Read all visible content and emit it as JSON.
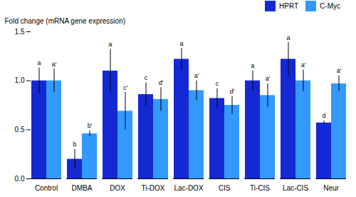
{
  "chart_data": {
    "type": "bar",
    "categories": [
      "Control",
      "DMBA",
      "DOX",
      "Ti-DOX",
      "Lac-DOX",
      "CIS",
      "Ti-CIS",
      "Lac-CIS",
      "Neur"
    ],
    "series": [
      {
        "name": "HPRT",
        "color": "#1428d4",
        "values": [
          1.0,
          0.2,
          1.1,
          0.86,
          1.22,
          0.82,
          1.0,
          1.22,
          0.57
        ],
        "errors": [
          0.13,
          0.1,
          0.22,
          0.12,
          0.11,
          0.1,
          0.1,
          0.17,
          0.02
        ],
        "labels": [
          "a",
          "b",
          "a",
          "c",
          "a",
          "c",
          "a",
          "a",
          "d"
        ]
      },
      {
        "name": "C-Myc",
        "color": "#3399ff",
        "values": [
          1.0,
          0.46,
          0.69,
          0.81,
          0.9,
          0.75,
          0.85,
          1.0,
          0.97
        ],
        "errors": [
          0.12,
          0.03,
          0.19,
          0.12,
          0.1,
          0.09,
          0.12,
          0.11,
          0.08
        ],
        "labels": [
          "a'",
          "b'",
          "c'",
          "d'",
          "a'",
          "d'",
          "a'",
          "a'",
          "a'"
        ]
      }
    ],
    "ylabel": "Fold change (mRNA gene expression)",
    "ylim": [
      0,
      1.5
    ],
    "yticks": [
      {
        "value": 0,
        "label": "0.0"
      },
      {
        "value": 0.5,
        "label": "0.5"
      },
      {
        "value": 1.0,
        "label": "1.0"
      },
      {
        "value": 1.5,
        "label": "1.5"
      }
    ],
    "legend": "upper right",
    "grid": false
  }
}
